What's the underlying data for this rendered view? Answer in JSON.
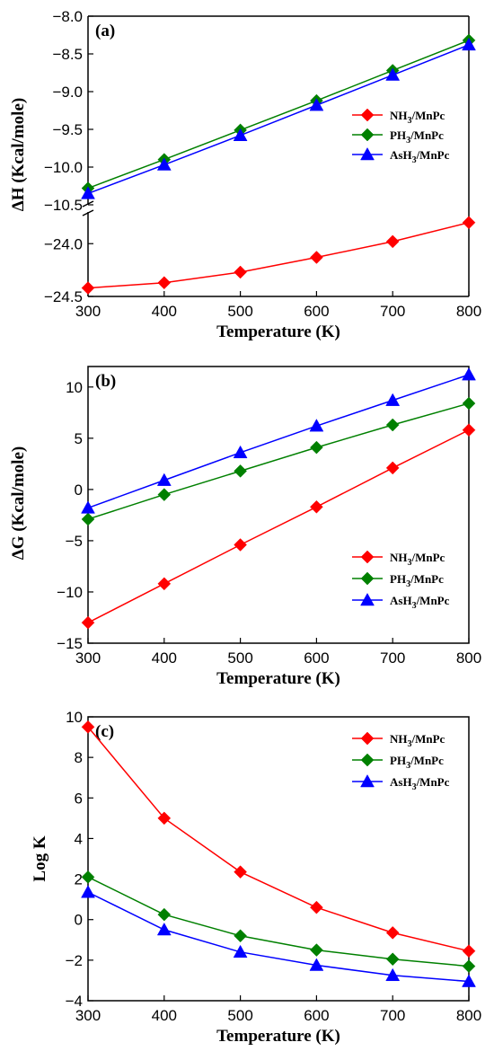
{
  "colors": {
    "NH3": "#ff0000",
    "PH3": "#008000",
    "AsH3": "#0000ff"
  },
  "legend_entries": [
    {
      "key": "NH3",
      "base": "NH",
      "sub": "3",
      "suffix": "/MnPc",
      "marker": "diamond"
    },
    {
      "key": "PH3",
      "base": "PH",
      "sub": "3",
      "suffix": "/MnPc",
      "marker": "diamond"
    },
    {
      "key": "AsH3",
      "base": "AsH",
      "sub": "3",
      "suffix": "/MnPc",
      "marker": "triangle"
    }
  ],
  "chart_data": [
    {
      "panel_label": "(a)",
      "type": "line",
      "xlabel": "Temperature (K)",
      "ylabel": "ΔH (Kcal/mole)",
      "xlim": [
        300,
        800
      ],
      "xticks": [
        300,
        400,
        500,
        600,
        700,
        800
      ],
      "broken_axis": true,
      "upper_ylim": [
        -10.5,
        -8.0
      ],
      "upper_yticks": [
        -8.0,
        -8.5,
        -9.0,
        -9.5,
        -10.0,
        -10.5
      ],
      "lower_ylim": [
        -24.5,
        -23.7
      ],
      "lower_yticks": [
        -24.0,
        -24.5
      ],
      "legend_position": "right",
      "x": [
        300,
        400,
        500,
        600,
        700,
        800
      ],
      "series": [
        {
          "name": "NH3/MnPc",
          "key": "NH3",
          "segment": "lower",
          "values": [
            -24.42,
            -24.37,
            -24.27,
            -24.13,
            -23.98,
            -23.8
          ]
        },
        {
          "name": "PH3/MnPc",
          "key": "PH3",
          "segment": "upper",
          "values": [
            -10.28,
            -9.9,
            -9.51,
            -9.12,
            -8.72,
            -8.32
          ]
        },
        {
          "name": "AsH3/MnPc",
          "key": "AsH3",
          "segment": "upper",
          "values": [
            -10.35,
            -9.97,
            -9.58,
            -9.18,
            -8.78,
            -8.38
          ]
        }
      ]
    },
    {
      "panel_label": "(b)",
      "type": "line",
      "xlabel": "Temperature (K)",
      "ylabel": "ΔG (Kcal/mole)",
      "xlim": [
        300,
        800
      ],
      "xticks": [
        300,
        400,
        500,
        600,
        700,
        800
      ],
      "ylim": [
        -15,
        12
      ],
      "yticks": [
        -15,
        -10,
        -5,
        0,
        5,
        10
      ],
      "legend_position": "bottom-right",
      "x": [
        300,
        400,
        500,
        600,
        700,
        800
      ],
      "series": [
        {
          "name": "NH3/MnPc",
          "key": "NH3",
          "values": [
            -13.0,
            -9.2,
            -5.4,
            -1.7,
            2.1,
            5.8
          ]
        },
        {
          "name": "PH3/MnPc",
          "key": "PH3",
          "values": [
            -2.9,
            -0.5,
            1.8,
            4.1,
            6.3,
            8.4
          ]
        },
        {
          "name": "AsH3/MnPc",
          "key": "AsH3",
          "values": [
            -1.8,
            0.9,
            3.6,
            6.2,
            8.7,
            11.2
          ]
        }
      ]
    },
    {
      "panel_label": "(c)",
      "type": "line",
      "xlabel": "Temperature (K)",
      "ylabel": "Log K",
      "xlim": [
        300,
        800
      ],
      "xticks": [
        300,
        400,
        500,
        600,
        700,
        800
      ],
      "ylim": [
        -4,
        10
      ],
      "yticks": [
        -4,
        -2,
        0,
        2,
        4,
        6,
        8,
        10
      ],
      "legend_position": "top-right",
      "x": [
        300,
        400,
        500,
        600,
        700,
        800
      ],
      "series": [
        {
          "name": "NH3/MnPc",
          "key": "NH3",
          "values": [
            9.5,
            5.0,
            2.35,
            0.6,
            -0.65,
            -1.55
          ]
        },
        {
          "name": "PH3/MnPc",
          "key": "PH3",
          "values": [
            2.1,
            0.25,
            -0.8,
            -1.5,
            -1.95,
            -2.3
          ]
        },
        {
          "name": "AsH3/MnPc",
          "key": "AsH3",
          "values": [
            1.35,
            -0.5,
            -1.6,
            -2.25,
            -2.75,
            -3.05
          ]
        }
      ]
    }
  ]
}
